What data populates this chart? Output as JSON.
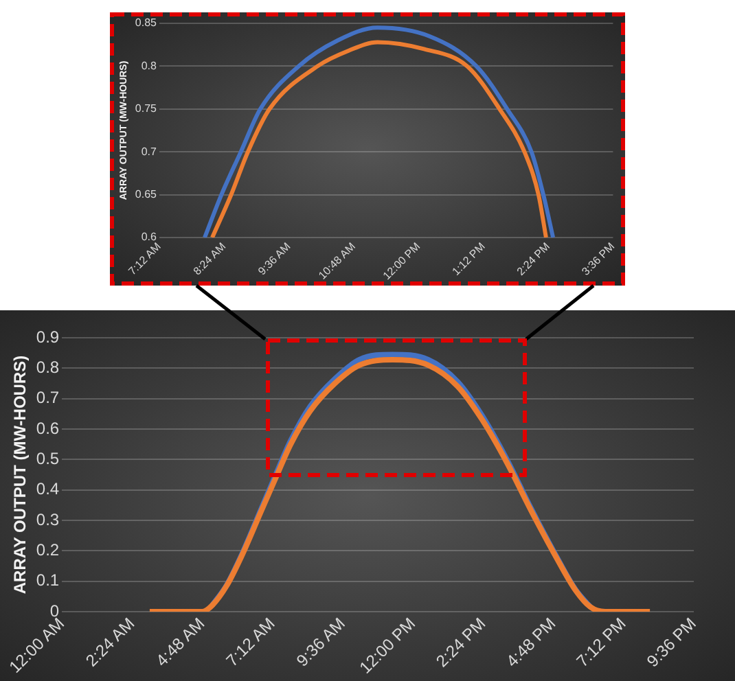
{
  "chart_data": [
    {
      "type": "line",
      "ylabel": "ARRAY OUTPUT (MW-HOURS)",
      "xlim": [
        7.2,
        15.6
      ],
      "ylim": [
        0.6,
        0.85
      ],
      "xticks": [
        {
          "value": 7.2,
          "label": "7:12 AM"
        },
        {
          "value": 8.4,
          "label": "8:24 AM"
        },
        {
          "value": 9.6,
          "label": "9:36 AM"
        },
        {
          "value": 10.8,
          "label": "10:48 AM"
        },
        {
          "value": 12,
          "label": "12:00 PM"
        },
        {
          "value": 13.2,
          "label": "1:12 PM"
        },
        {
          "value": 14.4,
          "label": "2:24 PM"
        },
        {
          "value": 15.6,
          "label": "3:36 PM"
        }
      ],
      "yticks": [
        0.6,
        0.65,
        0.7,
        0.75,
        0.8,
        0.85
      ],
      "grid": "y",
      "legend": false,
      "marker": "none",
      "line_style": "solid",
      "series": [
        {
          "color": "#4472c4",
          "x": [
            8.04,
            8.35,
            8.71,
            9.07,
            9.78,
            10.5,
            11.24,
            12.2,
            13.07,
            13.64,
            14.09,
            14.31,
            14.49
          ],
          "values": [
            0.6,
            0.65,
            0.7,
            0.75,
            0.8,
            0.83,
            0.845,
            0.835,
            0.8,
            0.75,
            0.7,
            0.65,
            0.6
          ]
        },
        {
          "color": "#ed7d31",
          "x": [
            8.18,
            8.53,
            8.84,
            9.24,
            10.13,
            10.7,
            11.24,
            12.1,
            12.9,
            13.5,
            13.96,
            14.22,
            14.36
          ],
          "values": [
            0.6,
            0.65,
            0.7,
            0.75,
            0.8,
            0.818,
            0.828,
            0.82,
            0.8,
            0.75,
            0.7,
            0.65,
            0.6
          ]
        }
      ]
    },
    {
      "type": "line",
      "ylabel": "ARRAY OUTPUT (MW-HOURS)",
      "xlim": [
        0,
        21.6
      ],
      "ylim": [
        0,
        0.9
      ],
      "xticks": [
        {
          "value": 0,
          "label": "12:00 AM"
        },
        {
          "value": 2.4,
          "label": "2:24 AM"
        },
        {
          "value": 4.8,
          "label": "4:48 AM"
        },
        {
          "value": 7.2,
          "label": "7:12 AM"
        },
        {
          "value": 9.6,
          "label": "9:36 AM"
        },
        {
          "value": 12,
          "label": "12:00 PM"
        },
        {
          "value": 14.4,
          "label": "2:24 PM"
        },
        {
          "value": 16.8,
          "label": "4:48 PM"
        },
        {
          "value": 19.2,
          "label": "7:12 PM"
        },
        {
          "value": 21.6,
          "label": "9:36 PM"
        }
      ],
      "yticks": [
        0,
        0.1,
        0.2,
        0.3,
        0.4,
        0.5,
        0.6,
        0.7,
        0.8,
        0.9
      ],
      "grid": "y",
      "legend": false,
      "marker": "none",
      "line_style": "solid",
      "series": [
        {
          "color": "#4472c4",
          "x": [
            5.13,
            5.63,
            6.13,
            6.81,
            7.31,
            7.82,
            8.49,
            9.33,
            10.17,
            11.3,
            12.52,
            13.53,
            14.37,
            15.21,
            16.05,
            16.89,
            17.56,
            18.07
          ],
          "values": [
            0.02,
            0.087,
            0.184,
            0.337,
            0.45,
            0.562,
            0.675,
            0.765,
            0.828,
            0.845,
            0.828,
            0.755,
            0.643,
            0.5,
            0.337,
            0.184,
            0.072,
            0.015
          ]
        },
        {
          "color": "#ed7d31",
          "x": [
            3,
            4.8,
            5.13,
            5.63,
            6.13,
            6.81,
            7.31,
            7.82,
            8.49,
            9.33,
            10.17,
            11.3,
            12.52,
            13.53,
            14.37,
            15.21,
            16.05,
            16.89,
            17.56,
            18.07,
            18.57,
            20.1
          ],
          "values": [
            0,
            0,
            0.02,
            0.085,
            0.18,
            0.33,
            0.44,
            0.55,
            0.66,
            0.75,
            0.81,
            0.828,
            0.81,
            0.74,
            0.63,
            0.49,
            0.33,
            0.18,
            0.07,
            0.015,
            0,
            0
          ]
        }
      ]
    }
  ]
}
